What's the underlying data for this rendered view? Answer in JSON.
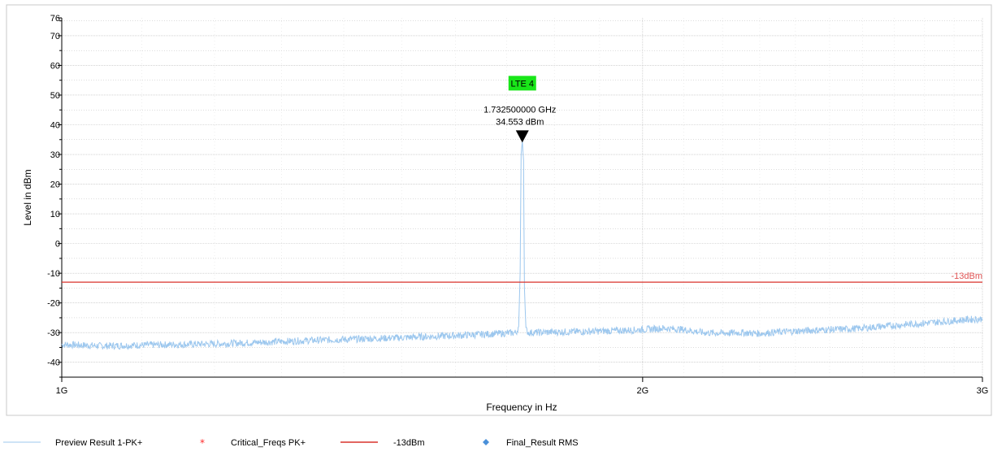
{
  "chart_data": {
    "type": "line",
    "xlabel": "Frequency in Hz",
    "ylabel": "Level in dBm",
    "x_scale": "log",
    "xlim": [
      1000000000,
      3000000000
    ],
    "ylim": [
      -45,
      76
    ],
    "x_ticks": [
      {
        "value": 1000000000,
        "label": "1G"
      },
      {
        "value": 2000000000,
        "label": "2G"
      },
      {
        "value": 3000000000,
        "label": "3G"
      }
    ],
    "y_ticks": [
      76,
      70,
      60,
      50,
      40,
      30,
      20,
      10,
      0,
      -10,
      -20,
      -30,
      -40
    ],
    "grid": true,
    "colors": {
      "trace": "#9cc7ee",
      "limit": "#d9322b",
      "critical": "#ff2a2a",
      "final": "#4a90d9",
      "band_label_bg": "#19e619",
      "grid": "#b8b8b8"
    },
    "series": [
      {
        "name": "Preview Result 1-PK+",
        "x": [
          1000000000,
          1050000000,
          1100000000,
          1150000000,
          1200000000,
          1250000000,
          1300000000,
          1350000000,
          1400000000,
          1450000000,
          1500000000,
          1550000000,
          1600000000,
          1650000000,
          1700000000,
          1720000000,
          1725000000,
          1728000000,
          1730000000,
          1732500000,
          1735000000,
          1737000000,
          1740000000,
          1745000000,
          1760000000,
          1800000000,
          1850000000,
          1900000000,
          1950000000,
          2000000000,
          2050000000,
          2100000000,
          2150000000,
          2200000000,
          2250000000,
          2300000000,
          2350000000,
          2400000000,
          2450000000,
          2500000000,
          2550000000,
          2600000000,
          2650000000,
          2700000000,
          2750000000,
          2800000000,
          2850000000,
          2900000000,
          2950000000,
          3000000000
        ],
        "y": [
          -34,
          -34.5,
          -34.2,
          -34,
          -33.8,
          -33.4,
          -33,
          -32.6,
          -32.3,
          -32,
          -31.7,
          -31.3,
          -31,
          -30.6,
          -30.2,
          -30,
          -28,
          -10,
          30,
          34.553,
          28,
          -15,
          -29,
          -30,
          -30,
          -29.8,
          -29.7,
          -29.5,
          -29.3,
          -29,
          -28.5,
          -29,
          -30,
          -30.2,
          -30,
          -30.3,
          -29.8,
          -29.5,
          -29.2,
          -29,
          -28.8,
          -28.5,
          -28,
          -27.6,
          -27.2,
          -26.8,
          -26.4,
          -26,
          -25.6,
          -25.4
        ]
      },
      {
        "name": "Critical_Freqs PK+",
        "x": [],
        "y": []
      },
      {
        "name": "-13dBm",
        "type": "limit",
        "y": -13
      },
      {
        "name": "Final_Result RMS",
        "x": [],
        "y": []
      }
    ],
    "limit_line": {
      "value": -13,
      "label": "-13dBm"
    },
    "band_label": {
      "text": "LTE 4",
      "x": 1732500000,
      "y": 54
    },
    "marker": {
      "x": 1732500000,
      "y": 34.553,
      "freq_text": "1.732500000 GHz",
      "level_text": "34.553 dBm"
    },
    "legend": {
      "placement": "bottom",
      "items": [
        {
          "label": "Preview Result 1-PK+",
          "symbol": "line",
          "color": "#9cc7ee"
        },
        {
          "label": "Critical_Freqs PK+",
          "symbol": "asterisk",
          "color": "#ff2a2a"
        },
        {
          "label": "-13dBm",
          "symbol": "line",
          "color": "#d9322b"
        },
        {
          "label": "Final_Result RMS",
          "symbol": "diamond",
          "color": "#4a90d9"
        }
      ]
    }
  }
}
